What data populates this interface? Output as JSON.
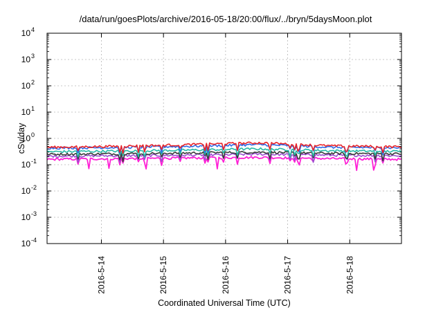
{
  "chart_data": {
    "type": "line",
    "title": "/data/run/goesPlots/archive/2016-05-18/20:00/flux/../bryn/5daysMoon.plot",
    "xlabel": "Coordinated Universal Time (UTC)",
    "ylabel": "cSv/day",
    "yscale": "log",
    "ylim": [
      0.0001,
      10000
    ],
    "xlim": [
      "2016-05-13 03:00",
      "2016-05-18 20:00"
    ],
    "grid": true,
    "legend": "none",
    "x_tick_labels": [
      "2016-5-14",
      "2016-5-15",
      "2016-5-16",
      "2016-5-17",
      "2016-5-18"
    ],
    "y_tick_labels": [
      {
        "base": "10",
        "exp": "-4"
      },
      {
        "base": "10",
        "exp": "-3"
      },
      {
        "base": "10",
        "exp": "-2"
      },
      {
        "base": "10",
        "exp": "-1"
      },
      {
        "base": "10",
        "exp": "0"
      },
      {
        "base": "10",
        "exp": "1"
      },
      {
        "base": "10",
        "exp": "2"
      },
      {
        "base": "10",
        "exp": "3"
      },
      {
        "base": "10",
        "exp": "4"
      }
    ],
    "series": [
      {
        "color": "#e8242a",
        "level": 0.5,
        "drift": [
          0.46,
          0.5,
          0.58,
          0.68,
          0.52,
          0.48
        ]
      },
      {
        "color": "#2d6be8",
        "level": 0.44,
        "drift": [
          0.43,
          0.45,
          0.5,
          0.58,
          0.46,
          0.44
        ]
      },
      {
        "color": "#26b8a6",
        "level": 0.33,
        "drift": [
          0.31,
          0.33,
          0.36,
          0.4,
          0.34,
          0.32
        ]
      },
      {
        "color": "#3a3a3a",
        "level": 0.26,
        "drift": [
          0.25,
          0.26,
          0.28,
          0.3,
          0.27,
          0.26
        ]
      },
      {
        "color": "#9b4fd0",
        "level": 0.22,
        "drift": [
          0.21,
          0.22,
          0.23,
          0.25,
          0.23,
          0.22
        ]
      },
      {
        "color": "#ff1fd6",
        "level": 0.17,
        "drift": [
          0.16,
          0.17,
          0.18,
          0.19,
          0.17,
          0.16
        ]
      }
    ]
  }
}
